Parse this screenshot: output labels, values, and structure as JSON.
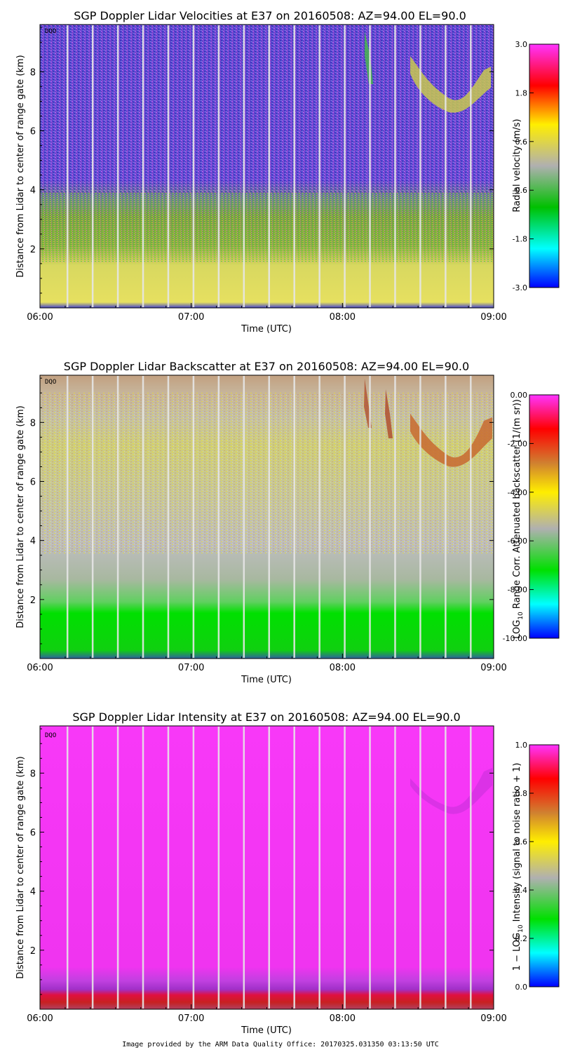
{
  "chart_data": [
    {
      "type": "heatmap",
      "title": "SGP Doppler Lidar Velocities at E37 on 20160508: AZ=94.00 EL=90.0",
      "xlabel": "Time (UTC)",
      "ylabel": "Distance from Lidar to center of range gate (km)",
      "xlim_hours": [
        6,
        9
      ],
      "xticks": [
        "06:00",
        "07:00",
        "08:00",
        "09:00"
      ],
      "ylim": [
        0,
        9.6
      ],
      "yticks": [
        2,
        4,
        6,
        8
      ],
      "flag": "DQO",
      "colorbar": {
        "label": "Radial velocity (m/s)",
        "range": [
          -3.0,
          3.0
        ],
        "ticks": [
          "3.0",
          "1.8",
          "0.6",
          "-0.6",
          "-1.8",
          "-3.0"
        ],
        "colors": [
          "#ff33ff",
          "#ff0000",
          "#ffee00",
          "#b0b0b0",
          "#00c000",
          "#00ffff",
          "#0000ff"
        ]
      }
    },
    {
      "type": "heatmap",
      "title": "SGP Doppler Lidar Backscatter at E37 on 20160508: AZ=94.00 EL=90.0",
      "xlabel": "Time (UTC)",
      "ylabel": "Distance from Lidar to center of range gate (km)",
      "xlim_hours": [
        6,
        9
      ],
      "xticks": [
        "06:00",
        "07:00",
        "08:00",
        "09:00"
      ],
      "ylim": [
        0,
        9.6
      ],
      "yticks": [
        2,
        4,
        6,
        8
      ],
      "flag": "DQO",
      "colorbar": {
        "label_main": "LOG",
        "label_sub": "10",
        "label_rest": " Range Corr. Attenuated backscatter (1/(m sr))",
        "range": [
          -10.0,
          0.0
        ],
        "ticks": [
          "0.00",
          "-2.00",
          "-4.00",
          "-6.00",
          "-8.00",
          "-10.00"
        ],
        "colors": [
          "#ff33ff",
          "#ff0000",
          "#d08030",
          "#ffee00",
          "#b0b0b0",
          "#00e000",
          "#00ffff",
          "#0000ff"
        ]
      }
    },
    {
      "type": "heatmap",
      "title": "SGP Doppler Lidar Intensity at E37 on 20160508: AZ=94.00 EL=90.0",
      "xlabel": "Time (UTC)",
      "ylabel": "Distance from Lidar to center of range gate (km)",
      "xlim_hours": [
        6,
        9
      ],
      "xticks": [
        "06:00",
        "07:00",
        "08:00",
        "09:00"
      ],
      "ylim": [
        0,
        9.6
      ],
      "yticks": [
        2,
        4,
        6,
        8
      ],
      "flag": "DQO",
      "colorbar": {
        "label_main": "1 − LOG",
        "label_sub": "10",
        "label_rest": " Intensity (signal to noise ratio + 1)",
        "range": [
          0.0,
          1.0
        ],
        "ticks": [
          "1.0",
          "0.8",
          "0.6",
          "0.4",
          "0.2",
          "0.0"
        ],
        "colors": [
          "#ff33ff",
          "#ff0000",
          "#d08030",
          "#ffee00",
          "#b0b0b0",
          "#00e000",
          "#00ffff",
          "#0000ff"
        ]
      }
    }
  ],
  "footer": "Image provided by the ARM Data Quality Office: 20170325.031350 03:13:50 UTC",
  "colors": {
    "background": "#ffffff",
    "gap_lines": "#e6e6e6",
    "velocity_noise": [
      "#3a3adc",
      "#cc44cc",
      "#ff66ff",
      "#2222aa"
    ],
    "velocity_boundary": [
      "#d8d830",
      "#44bb44",
      "#aaaaaa"
    ],
    "backscatter_background": "#bdbdbd",
    "backscatter_boundary": "#00e000",
    "intensity_background": "#ff33ff"
  }
}
